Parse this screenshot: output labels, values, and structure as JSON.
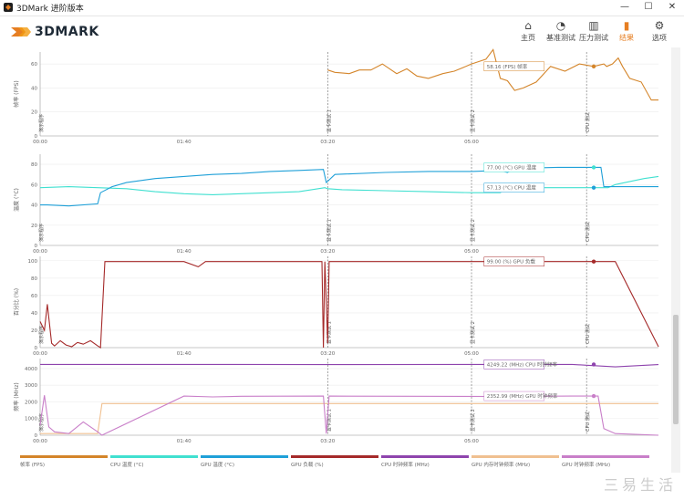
{
  "window": {
    "title": "3DMark 进阶版本",
    "min": "—",
    "max": "☐",
    "close": "✕"
  },
  "app": {
    "logo": "3DMARK"
  },
  "nav": [
    {
      "label": "主页",
      "icon": "home-icon",
      "glyph": "⌂"
    },
    {
      "label": "基准测试",
      "icon": "gauge-icon",
      "glyph": "◔"
    },
    {
      "label": "压力测试",
      "icon": "bar-chart-icon",
      "glyph": "▥"
    },
    {
      "label": "结果",
      "icon": "results-icon",
      "glyph": "▮",
      "active": true
    },
    {
      "label": "选项",
      "icon": "gear-icon",
      "glyph": "⚙"
    }
  ],
  "colors": {
    "fps": "#d4852a",
    "cpu_temp": "#40e0d0",
    "gpu_temp": "#1fa0d8",
    "gpu_load": "#a52a2a",
    "cpu_clock": "#8e44ad",
    "gpu_mem_clock": "#f0c090",
    "gpu_clock": "#c97fc9"
  },
  "markers": [
    "演示程序",
    "显卡测试 1",
    "显卡测试 2",
    "CPU 测试"
  ],
  "x_ticks": [
    "00:00",
    "01:40",
    "03:20",
    "05:00"
  ],
  "chart_data": [
    {
      "type": "line",
      "ylabel": "帧率 (FPS)",
      "yticks": [
        "0",
        "20",
        "40",
        "60"
      ],
      "ylim": [
        0,
        70
      ],
      "series": [
        {
          "name": "帧率 (FPS)",
          "x": [
            200,
            205,
            215,
            222,
            230,
            238,
            248,
            255,
            262,
            270,
            280,
            288,
            294,
            300,
            305,
            310,
            315,
            320,
            325,
            330,
            336,
            345,
            355,
            365,
            375,
            385,
            392,
            394,
            398,
            402,
            405,
            410,
            418,
            425,
            430
          ],
          "y": [
            55,
            53,
            52,
            55,
            55,
            60,
            52,
            56,
            50,
            48,
            52,
            54,
            57,
            60,
            62,
            64,
            72,
            48,
            46,
            38,
            40,
            45,
            58,
            54,
            60,
            58,
            60,
            58,
            60,
            65,
            58,
            48,
            45,
            30,
            30
          ]
        }
      ],
      "callout": "58.16 (FPS) 帧率"
    },
    {
      "type": "line",
      "ylabel": "温度 (°C)",
      "yticks": [
        "0",
        "20",
        "40",
        "60",
        "80"
      ],
      "ylim": [
        0,
        90
      ],
      "series": [
        {
          "name": "CPU 温度 (°C)",
          "x": [
            0,
            20,
            40,
            60,
            80,
            100,
            120,
            140,
            160,
            180,
            198,
            200,
            210,
            240,
            270,
            300,
            320,
            325,
            330,
            360,
            390,
            395,
            400,
            420,
            430
          ],
          "y": [
            57,
            58,
            57,
            56,
            53,
            51,
            50,
            51,
            52,
            53,
            57,
            56,
            55,
            54,
            53,
            52,
            52,
            57,
            57,
            57,
            57,
            57,
            60,
            66,
            68
          ]
        },
        {
          "name": "GPU 温度 (°C)",
          "x": [
            0,
            5,
            20,
            40,
            42,
            50,
            60,
            80,
            100,
            120,
            140,
            160,
            180,
            197,
            199,
            205,
            240,
            270,
            300,
            320,
            325,
            330,
            360,
            390,
            392,
            400,
            430
          ],
          "y": [
            40,
            40,
            39,
            41,
            52,
            58,
            62,
            66,
            68,
            70,
            71,
            73,
            74,
            75,
            62,
            70,
            72,
            73,
            73,
            74,
            72,
            76,
            77,
            77,
            58,
            58,
            58
          ]
        }
      ],
      "callouts": [
        "77.00 (°C) GPU 温度",
        "57.13 (°C) CPU 温度"
      ]
    },
    {
      "type": "line",
      "ylabel": "百分比 (%)",
      "yticks": [
        "0",
        "20",
        "40",
        "60",
        "80",
        "100"
      ],
      "ylim": [
        0,
        105
      ],
      "series": [
        {
          "name": "GPU 负载 (%)",
          "x": [
            0,
            3,
            5,
            8,
            10,
            14,
            18,
            22,
            26,
            30,
            35,
            40,
            42,
            45,
            100,
            110,
            115,
            120,
            125,
            190,
            196,
            197,
            198,
            200,
            201,
            203,
            300,
            330,
            336,
            345,
            352,
            360,
            370,
            378,
            380,
            385,
            390,
            395,
            400,
            430
          ],
          "y": [
            30,
            20,
            50,
            5,
            2,
            8,
            3,
            1,
            6,
            4,
            8,
            2,
            0,
            99,
            99,
            93,
            99,
            99,
            99,
            99,
            99,
            0,
            99,
            5,
            99,
            99,
            99,
            99,
            99,
            99,
            99,
            99,
            99,
            99,
            99,
            99,
            99,
            99,
            99,
            1
          ]
        }
      ],
      "callout": "99.00 (%) GPU 负载"
    },
    {
      "type": "line",
      "ylabel": "频率 (MHz)",
      "yticks": [
        "0",
        "1000",
        "2000",
        "3000",
        "4000"
      ],
      "ylim": [
        0,
        4600
      ],
      "series": [
        {
          "name": "CPU 时钟频率 (MHz)",
          "x": [
            0,
            100,
            200,
            300,
            370,
            380,
            400,
            430
          ],
          "y": [
            4250,
            4250,
            4240,
            4250,
            4249,
            4200,
            4100,
            4240
          ]
        },
        {
          "name": "GPU 内存时钟频率 (MHz)",
          "x": [
            0,
            40,
            43,
            200,
            320,
            400,
            430
          ],
          "y": [
            100,
            100,
            1900,
            1900,
            1900,
            1900,
            1900
          ]
        },
        {
          "name": "GPU 时钟频率 (MHz)",
          "x": [
            0,
            3,
            6,
            10,
            20,
            30,
            40,
            43,
            100,
            120,
            140,
            197,
            199,
            201,
            260,
            320,
            370,
            380,
            384,
            388,
            392,
            400,
            430
          ],
          "y": [
            600,
            2400,
            500,
            200,
            100,
            800,
            200,
            0,
            2350,
            2300,
            2340,
            2350,
            100,
            2350,
            2340,
            2330,
            2352,
            2350,
            2350,
            2350,
            400,
            100,
            0
          ]
        }
      ],
      "callouts": [
        "4249.22 (MHz) CPU 时钟频率",
        "2352.99 (MHz) GPU 时钟频率"
      ]
    }
  ],
  "legend": [
    {
      "label": "帧率 (FPS)",
      "color": "#d4852a"
    },
    {
      "label": "CPU 温度 (°C)",
      "color": "#40e0d0"
    },
    {
      "label": "GPU 温度 (°C)",
      "color": "#1fa0d8"
    },
    {
      "label": "GPU 负载 (%)",
      "color": "#a52a2a"
    },
    {
      "label": "CPU 时钟频率 (MHz)",
      "color": "#8e44ad"
    },
    {
      "label": "GPU 内存时钟频率 (MHz)",
      "color": "#f0c090"
    },
    {
      "label": "GPU 时钟频率 (MHz)",
      "color": "#c97fc9"
    }
  ],
  "watermark": "三易生活"
}
